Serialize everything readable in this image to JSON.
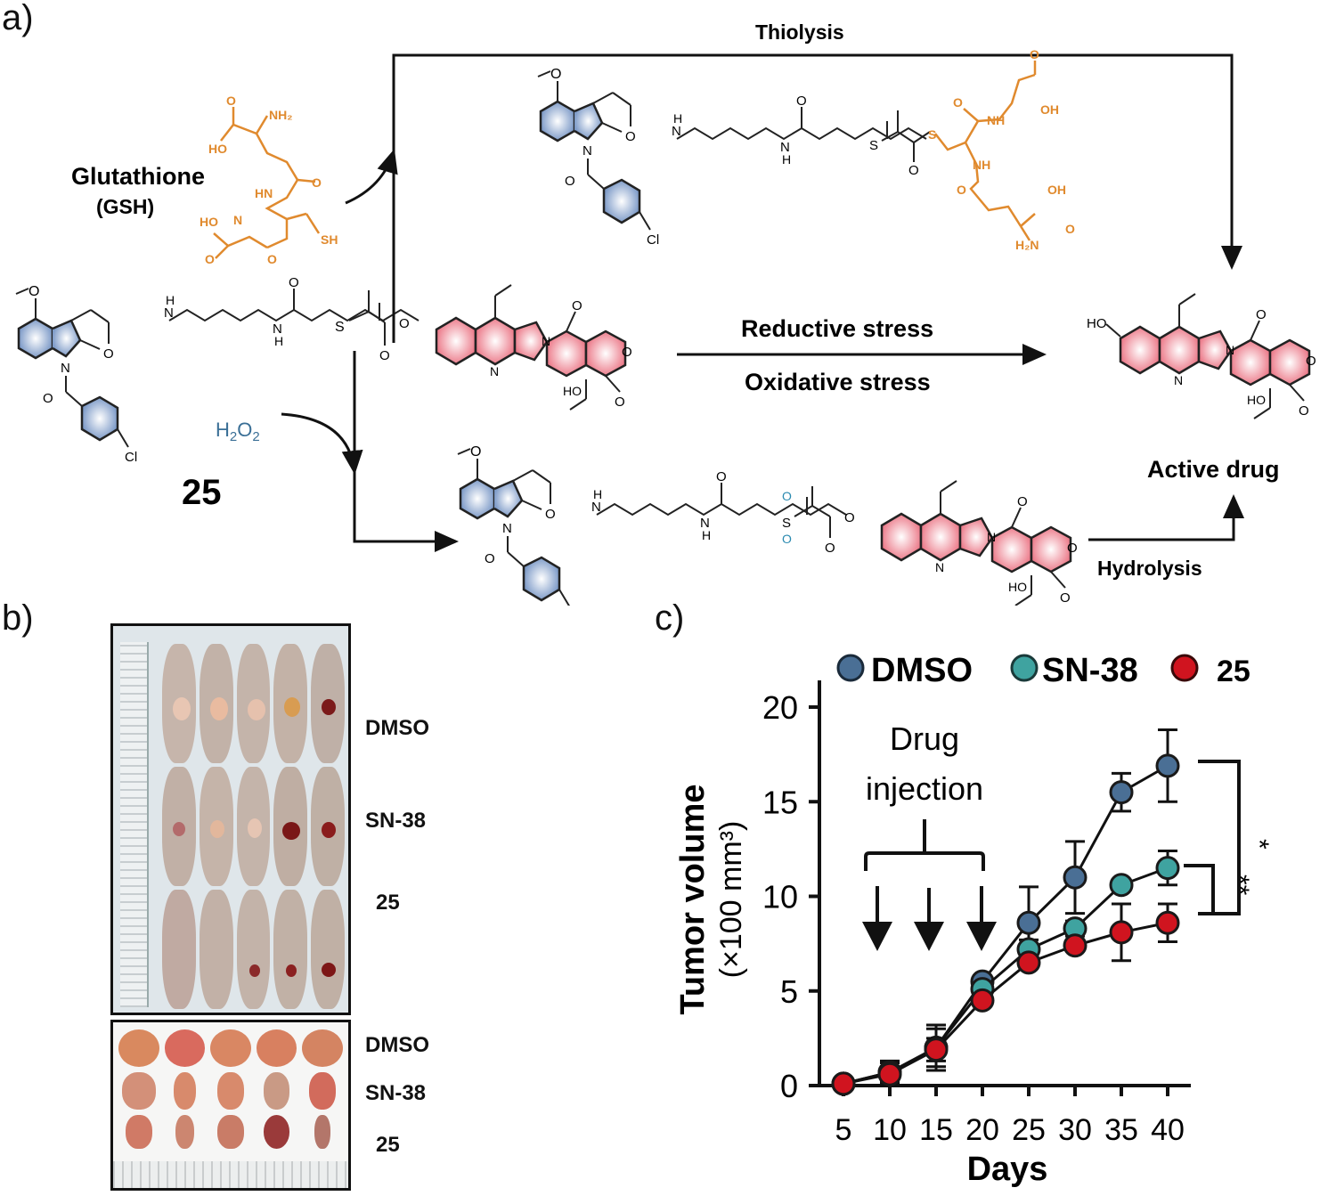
{
  "panel_a": {
    "label": "a)",
    "reagent_gsh": {
      "name": "Glutathione",
      "abbr": "(GSH)"
    },
    "reagent_h2o2": "H2O2",
    "compound_number": "25",
    "path_top_label": "Thiolysis",
    "path_middle_top": "Reductive stress",
    "path_middle_bottom": "Oxidative stress",
    "path_bottom_label": "Hydrolysis",
    "product_label": "Active drug",
    "colors": {
      "indomethacin": "#5b7fb5",
      "gsh": "#e08a2e",
      "sn38": "#e8697a",
      "h2o2": "#3a6f96",
      "sulfone_o": "#2a8ab0"
    }
  },
  "panel_b": {
    "label": "b)",
    "mice_rows": [
      "DMSO",
      "SN-38",
      "25"
    ],
    "tumor_rows": [
      "DMSO",
      "SN-38",
      "25"
    ]
  },
  "panel_c": {
    "label": "c)",
    "legend": [
      "DMSO",
      "SN-38",
      "25"
    ],
    "annotation": {
      "line1": "Drug",
      "line2": "injection"
    },
    "sig_outer": "*",
    "sig_inner": "**",
    "ylabel_line1": "Tumor volume",
    "ylabel_line2": "(×100 mm³)",
    "xlabel": "Days"
  },
  "chart_data": {
    "type": "line",
    "title": "",
    "xlabel": "Days",
    "ylabel": "Tumor volume (×100 mm³)",
    "x": [
      5,
      10,
      15,
      20,
      25,
      30,
      35,
      40
    ],
    "ylim": [
      0,
      20
    ],
    "yticks": [
      0,
      5,
      10,
      15,
      20
    ],
    "series": [
      {
        "name": "DMSO",
        "color": "#4a6f95",
        "values": [
          0.1,
          0.7,
          2.0,
          5.5,
          8.6,
          11.0,
          15.5,
          16.9
        ],
        "error": [
          0.2,
          0.6,
          1.0,
          0.3,
          1.9,
          1.9,
          1.0,
          1.9
        ]
      },
      {
        "name": "SN-38",
        "color": "#3fa3a0",
        "values": [
          0.1,
          0.7,
          2.0,
          5.1,
          7.2,
          8.3,
          10.6,
          11.5
        ],
        "error": [
          0.2,
          0.5,
          1.2,
          0.3,
          0.5,
          0.4,
          0.3,
          0.9
        ]
      },
      {
        "name": "25",
        "color": "#d0141f",
        "values": [
          0.1,
          0.6,
          1.9,
          4.5,
          6.5,
          7.4,
          8.1,
          8.6
        ],
        "error": [
          0.2,
          0.4,
          0.6,
          0.3,
          0.3,
          0.3,
          1.5,
          1.0
        ]
      }
    ],
    "annotations": [
      "Drug injection (arrows at days ~8.5, 14.5, 20)",
      "* DMSO vs 25",
      "** SN-38 vs 25"
    ],
    "legend_position": "top",
    "grid": false
  }
}
